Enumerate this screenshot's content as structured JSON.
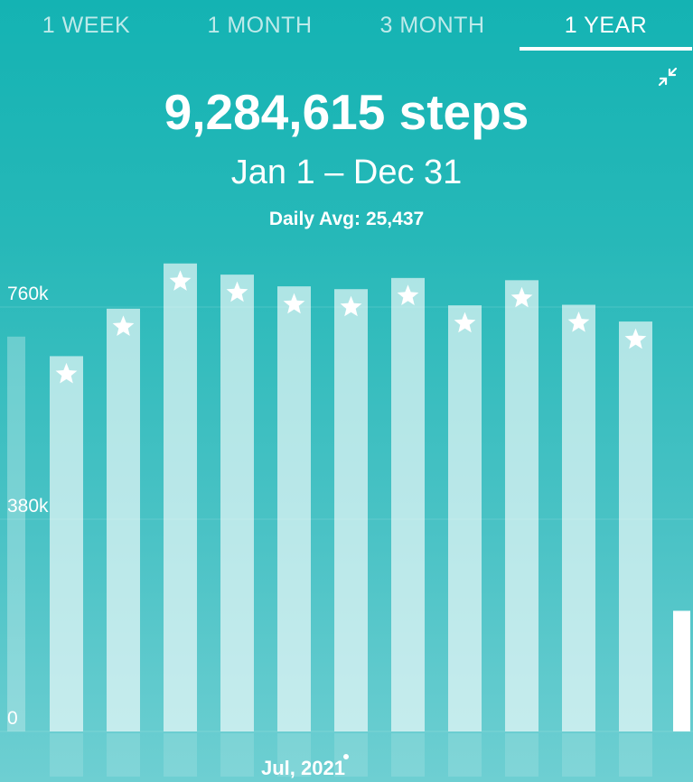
{
  "tabs": [
    {
      "label": "1 WEEK",
      "active": false
    },
    {
      "label": "1 MONTH",
      "active": false
    },
    {
      "label": "3 MONTH",
      "active": false
    },
    {
      "label": "1 YEAR",
      "active": true
    }
  ],
  "summary": {
    "total": "9,284,615",
    "unit": "steps",
    "date_range": "Jan 1 – Dec 31",
    "daily_avg_label": "Daily Avg:",
    "daily_avg_value": "25,437"
  },
  "icons": {
    "collapse": "collapse-arrows-icon",
    "goal_marker": "star-icon"
  },
  "colors": {
    "background_top": "#14b3b3",
    "background_bottom": "#6ecfd2",
    "bar": "#bfeaea",
    "text": "#ffffff"
  },
  "chart_data": {
    "type": "bar",
    "x_tick_label": "Jul, 2021",
    "y_ticks": [
      "0",
      "380k",
      "760k"
    ],
    "y_tick_values": [
      0,
      380000,
      760000
    ],
    "ylim": [
      0,
      840000
    ],
    "grid": true,
    "previous_partial_value": 707000,
    "current_partial_value": 216000,
    "values": [
      672000,
      757000,
      838000,
      818000,
      797000,
      792000,
      812000,
      763000,
      808000,
      764000,
      734000
    ],
    "goal_met": [
      true,
      true,
      true,
      true,
      true,
      true,
      true,
      true,
      true,
      true,
      true
    ]
  }
}
